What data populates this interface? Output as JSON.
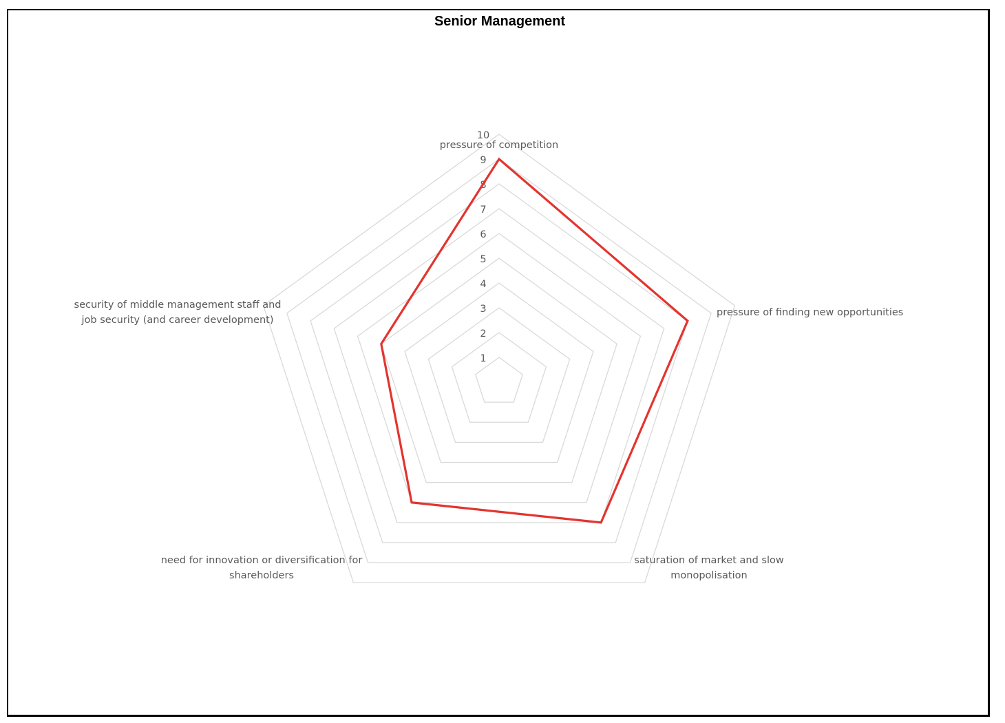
{
  "chart_data": {
    "type": "radar",
    "title": "Senior Management",
    "axes": [
      [
        "pressure of competition"
      ],
      [
        "pressure of finding new opportunities"
      ],
      [
        "saturation of market and slow",
        "monopolisation"
      ],
      [
        "need for innovation or diversification for",
        "shareholders"
      ],
      [
        "security of middle management staff and",
        "job security (and career development)"
      ]
    ],
    "series": [
      {
        "values": [
          9,
          8,
          7,
          6,
          5
        ],
        "color": "#e3342f"
      }
    ],
    "rlim": [
      1,
      10
    ],
    "ticks": [
      "1",
      "2",
      "3",
      "4",
      "5",
      "6",
      "7",
      "8",
      "9",
      "10"
    ],
    "grid": true,
    "grid_color": "#d9d9d9",
    "legend": "none"
  }
}
